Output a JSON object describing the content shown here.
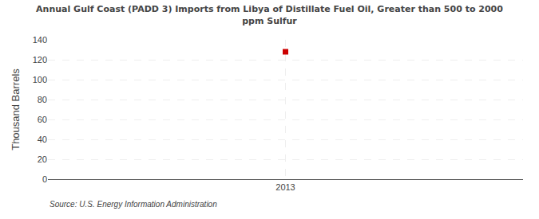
{
  "chart_data": {
    "type": "scatter",
    "title": "Annual Gulf Coast (PADD 3) Imports from Libya of Distillate Fuel Oil, Greater than 500 to 2000\nppm Sulfur",
    "x": [
      2013
    ],
    "values": [
      128
    ],
    "color": "#cc0000",
    "marker": "square",
    "ylabel": "Thousand Barrels",
    "xlim": [
      2012.4,
      2013.6
    ],
    "xticks": [
      2013
    ],
    "ylim": [
      0,
      140
    ],
    "yticks": [
      0,
      20,
      40,
      60,
      80,
      100,
      120,
      140
    ],
    "grid": true,
    "source": "Source: U.S. Energy Information Administration"
  }
}
